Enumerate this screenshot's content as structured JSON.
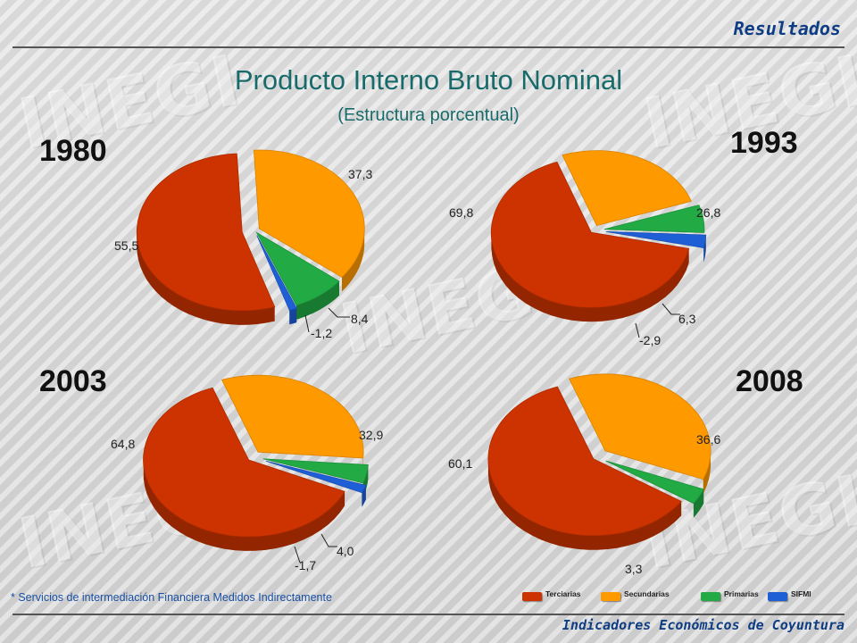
{
  "header": {
    "section": "Resultados"
  },
  "footer": {
    "text": "Indicadores Económicos de Coyuntura"
  },
  "title": "Producto Interno Bruto Nominal",
  "subtitle": "(Estructura porcentual)",
  "note": "* Servicios de intermediación Financiera Medidos Indirectamente",
  "watermark": "INEGI",
  "colors": {
    "Terciarias": "#cc3300",
    "Secundarias": "#ff9900",
    "Primarias": "#22aa44",
    "SIFMI": "#1f5fd6"
  },
  "legend": [
    {
      "label": "Terciarias",
      "color": "#cc3300"
    },
    {
      "label": "Secundarias",
      "color": "#ff9900"
    },
    {
      "label": "Primarias",
      "color": "#22aa44"
    },
    {
      "label": "SIFMI",
      "color": "#1f5fd6"
    }
  ],
  "chart_data": [
    {
      "type": "pie",
      "title": "1980",
      "categories": [
        "Secundarias",
        "Primarias",
        "SIFMI",
        "Terciarias"
      ],
      "values": [
        37.3,
        8.4,
        -1.2,
        55.5
      ],
      "labels": [
        "37,3",
        "8,4",
        "-1,2",
        "55,5"
      ]
    },
    {
      "type": "pie",
      "title": "1993",
      "categories": [
        "Secundarias",
        "Primarias",
        "SIFMI",
        "Terciarias"
      ],
      "values": [
        26.8,
        6.3,
        -2.9,
        69.8
      ],
      "labels": [
        "26,8",
        "6,3",
        "-2,9",
        "69,8"
      ]
    },
    {
      "type": "pie",
      "title": "2003",
      "categories": [
        "Secundarias",
        "Primarias",
        "SIFMI",
        "Terciarias"
      ],
      "values": [
        32.9,
        4.0,
        -1.7,
        64.8
      ],
      "labels": [
        "32,9",
        "4,0",
        "-1,7",
        "64,8"
      ]
    },
    {
      "type": "pie",
      "title": "2008",
      "categories": [
        "Secundarias",
        "Primarias",
        "Terciarias"
      ],
      "values": [
        36.6,
        3.3,
        60.1
      ],
      "labels": [
        "36,6",
        "3,3",
        "60,1"
      ]
    }
  ]
}
